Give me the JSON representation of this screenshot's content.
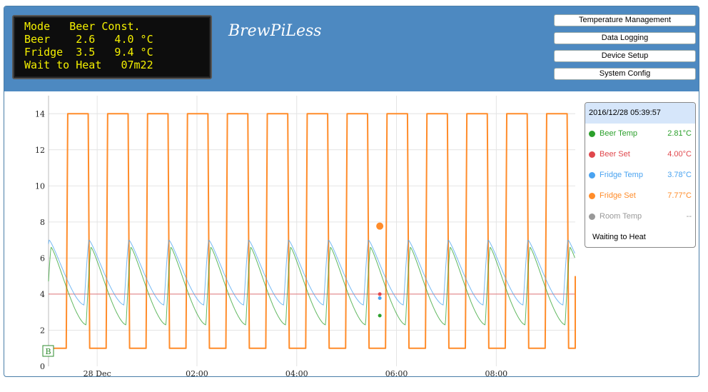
{
  "lcd": {
    "lines": [
      "Mode   Beer Const.",
      "Beer    2.6   4.0 °C",
      "Fridge  3.5   9.4 °C",
      "Wait to Heat   07m22"
    ]
  },
  "app": {
    "title": "BrewPiLess"
  },
  "menu": {
    "items": [
      {
        "label": "Temperature Management"
      },
      {
        "label": "Data Logging"
      },
      {
        "label": "Device Setup"
      },
      {
        "label": "System Config"
      }
    ]
  },
  "legend": {
    "time": "2016/12/28 05:39:57",
    "rows": [
      {
        "name": "Beer Temp",
        "value": "2.81°C",
        "color": "#2ca02c"
      },
      {
        "name": "Beer Set",
        "value": "4.00°C",
        "color": "#e0474c"
      },
      {
        "name": "Fridge Temp",
        "value": "3.78°C",
        "color": "#4aa3f0"
      },
      {
        "name": "Fridge Set",
        "value": "7.77°C",
        "color": "#ff8c2a"
      },
      {
        "name": "Room Temp",
        "value": "--",
        "color": "#999999"
      }
    ],
    "status": "Waiting to Heat"
  },
  "chart_data": {
    "type": "line",
    "x_range_hours": [
      -0.975,
      9.583
    ],
    "ylim": [
      0,
      15
    ],
    "y_ticks": [
      0,
      2,
      4,
      6,
      8,
      10,
      12,
      14
    ],
    "x_ticks": [
      {
        "label": "28 Dec",
        "hour": 0
      },
      {
        "label": "02:00",
        "hour": 2
      },
      {
        "label": "04:00",
        "hour": 4
      },
      {
        "label": "06:00",
        "hour": 6
      },
      {
        "label": "08:00",
        "hour": 8
      }
    ],
    "series": [
      {
        "name": "Fridge Set",
        "color": "#ff8c2a",
        "low": 1.0,
        "high": 14.0,
        "period_hours": 0.8,
        "first_rise_hour": -0.62,
        "on_hours": 0.44
      },
      {
        "name": "Beer Temp",
        "color": "#2ca02c",
        "min": 2.3,
        "max": 6.6
      },
      {
        "name": "Fridge Temp",
        "color": "#4aa3f0",
        "min": 3.4,
        "max": 7.0
      },
      {
        "name": "Beer Set",
        "color": "#e0474c",
        "value": 4.0
      }
    ],
    "current_hour": 5.665,
    "markers": [
      {
        "series": "Fridge Set",
        "value": 7.77,
        "color": "#ff8c2a"
      },
      {
        "series": "Beer Set",
        "value": 4.0,
        "color": "#e0474c"
      },
      {
        "series": "Fridge Temp",
        "value": 3.78,
        "color": "#4aa3f0"
      },
      {
        "series": "Beer Temp",
        "value": 2.81,
        "color": "#2ca02c"
      }
    ],
    "annotation": "B"
  }
}
